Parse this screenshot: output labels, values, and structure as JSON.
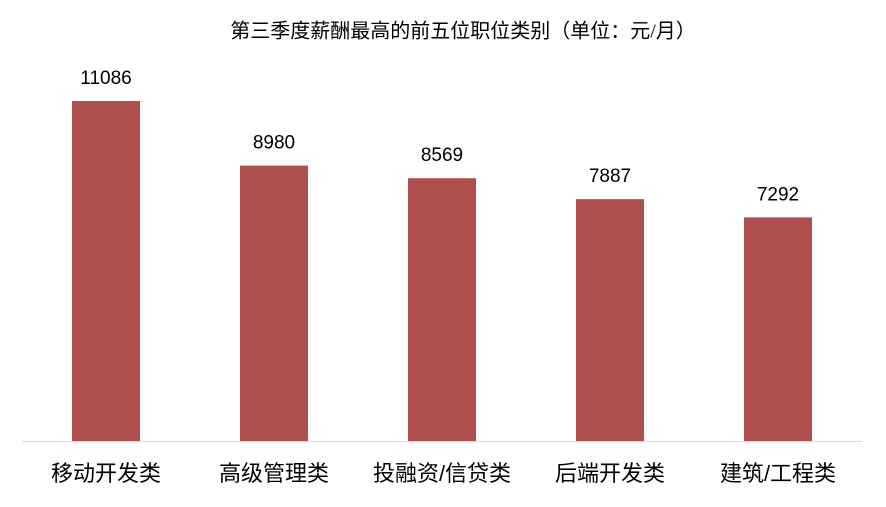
{
  "chart_data": {
    "type": "bar",
    "title": "第三季度薪酬最高的前五位职位类别（单位：元/月）",
    "categories": [
      "移动开发类",
      "高级管理类",
      "投融资/信贷类",
      "后端开发类",
      "建筑/工程类"
    ],
    "values": [
      11086,
      8980,
      8569,
      7887,
      7292
    ],
    "color": "#ae4f4d",
    "ylim": [
      0,
      12000
    ]
  }
}
